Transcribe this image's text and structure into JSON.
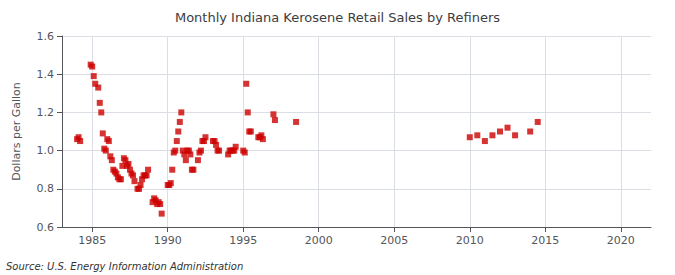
{
  "chart_data": {
    "type": "scatter",
    "title": "Monthly Indiana Kerosene Retail Sales by Refiners",
    "ylabel": "Dollars per Gallon",
    "source": "Source: U.S. Energy Information Administration",
    "color": "#cc0000",
    "marker": "square",
    "grid": true,
    "xlim": [
      1983,
      2022
    ],
    "ylim": [
      0.6,
      1.6
    ],
    "xticks": [
      1985,
      1990,
      1995,
      2000,
      2005,
      2010,
      2015,
      2020
    ],
    "yticks": [
      0.6,
      0.8,
      {
        "value": 1,
        "label": "1.0"
      },
      1.2,
      1.4,
      1.6
    ],
    "x": [
      1984.0,
      1984.1,
      1984.2,
      1984.9,
      1985.0,
      1985.1,
      1985.2,
      1985.4,
      1985.5,
      1985.6,
      1985.7,
      1985.8,
      1985.9,
      1986.0,
      1986.1,
      1986.2,
      1986.3,
      1986.4,
      1986.5,
      1986.6,
      1986.7,
      1986.8,
      1986.9,
      1987.0,
      1987.1,
      1987.2,
      1987.3,
      1987.4,
      1987.5,
      1987.6,
      1987.7,
      1987.8,
      1988.0,
      1988.1,
      1988.2,
      1988.3,
      1988.4,
      1988.5,
      1988.6,
      1988.7,
      1989.0,
      1989.1,
      1989.2,
      1989.3,
      1989.4,
      1989.5,
      1989.6,
      1990.0,
      1990.1,
      1990.2,
      1990.3,
      1990.4,
      1990.5,
      1990.6,
      1990.7,
      1990.8,
      1990.9,
      1991.0,
      1991.1,
      1991.2,
      1991.3,
      1991.4,
      1991.5,
      1991.6,
      1991.7,
      1992.0,
      1992.1,
      1992.2,
      1992.3,
      1992.4,
      1992.5,
      1993.0,
      1993.1,
      1993.2,
      1993.3,
      1993.4,
      1994.0,
      1994.1,
      1994.2,
      1994.3,
      1994.4,
      1994.5,
      1995.0,
      1995.1,
      1995.2,
      1995.3,
      1995.4,
      1995.5,
      1996.0,
      1996.1,
      1996.2,
      1996.3,
      1997.0,
      1997.1,
      1998.5,
      2010.0,
      2010.5,
      2011.0,
      2011.5,
      2012.0,
      2012.5,
      2013.0,
      2014.0,
      2014.5
    ],
    "y": [
      1.06,
      1.07,
      1.05,
      1.45,
      1.44,
      1.39,
      1.35,
      1.33,
      1.25,
      1.2,
      1.09,
      1.01,
      1.0,
      1.06,
      1.05,
      0.97,
      0.95,
      0.9,
      0.89,
      0.88,
      0.86,
      0.85,
      0.85,
      0.92,
      0.96,
      0.95,
      0.92,
      0.93,
      0.9,
      0.88,
      0.87,
      0.84,
      0.8,
      0.8,
      0.82,
      0.85,
      0.87,
      0.87,
      0.87,
      0.9,
      0.73,
      0.75,
      0.74,
      0.72,
      0.73,
      0.72,
      0.67,
      0.82,
      0.82,
      0.83,
      0.9,
      0.99,
      1.0,
      1.05,
      1.1,
      1.15,
      1.2,
      1.0,
      0.98,
      0.95,
      1.0,
      1.0,
      0.98,
      0.9,
      0.9,
      0.95,
      0.99,
      1.0,
      1.05,
      1.05,
      1.07,
      1.05,
      1.05,
      1.03,
      1.0,
      1.0,
      0.98,
      1.0,
      1.0,
      1.0,
      1.0,
      1.02,
      1.0,
      0.99,
      1.35,
      1.2,
      1.1,
      1.1,
      1.07,
      1.07,
      1.08,
      1.06,
      1.19,
      1.16,
      1.15,
      1.07,
      1.08,
      1.05,
      1.08,
      1.1,
      1.12,
      1.08,
      1.1,
      1.15
    ]
  }
}
